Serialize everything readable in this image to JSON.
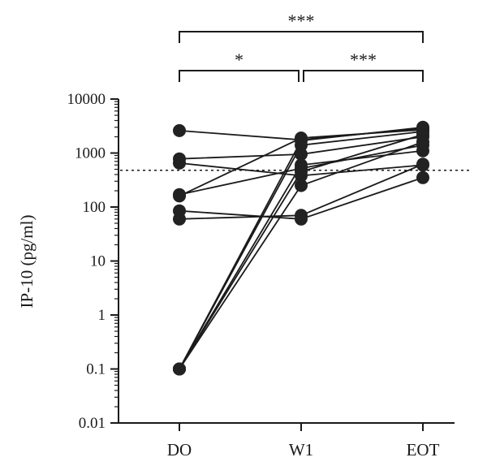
{
  "chart_data": {
    "type": "scatter",
    "paired": true,
    "yscale": "log",
    "ylabel": "IP-10 (pg/ml)",
    "ylim": [
      0.01,
      10000
    ],
    "yticks": [
      "10000",
      "1000",
      "100",
      "10",
      "1",
      "0.1",
      "0.01"
    ],
    "categories": [
      "DO",
      "W1",
      "EOT"
    ],
    "reference_line": {
      "y": 480,
      "style": "dotted"
    },
    "subjects": [
      [
        2600,
        1750,
        2900
      ],
      [
        780,
        950,
        2000
      ],
      [
        650,
        380,
        600
      ],
      [
        170,
        520,
        1400
      ],
      [
        160,
        1900,
        2700
      ],
      [
        85,
        60,
        350
      ],
      [
        60,
        70,
        620
      ],
      [
        0.1,
        1700,
        3000
      ],
      [
        0.1,
        1400,
        2500
      ],
      [
        0.1,
        600,
        1100
      ],
      [
        0.1,
        450,
        2200
      ],
      [
        0.1,
        250,
        1600
      ]
    ],
    "significance": [
      {
        "from": "DO",
        "to": "EOT",
        "label": "***",
        "level": 1
      },
      {
        "from": "DO",
        "to": "W1",
        "label": "*",
        "level": 0
      },
      {
        "from": "W1",
        "to": "EOT",
        "label": "***",
        "level": 0
      }
    ]
  }
}
